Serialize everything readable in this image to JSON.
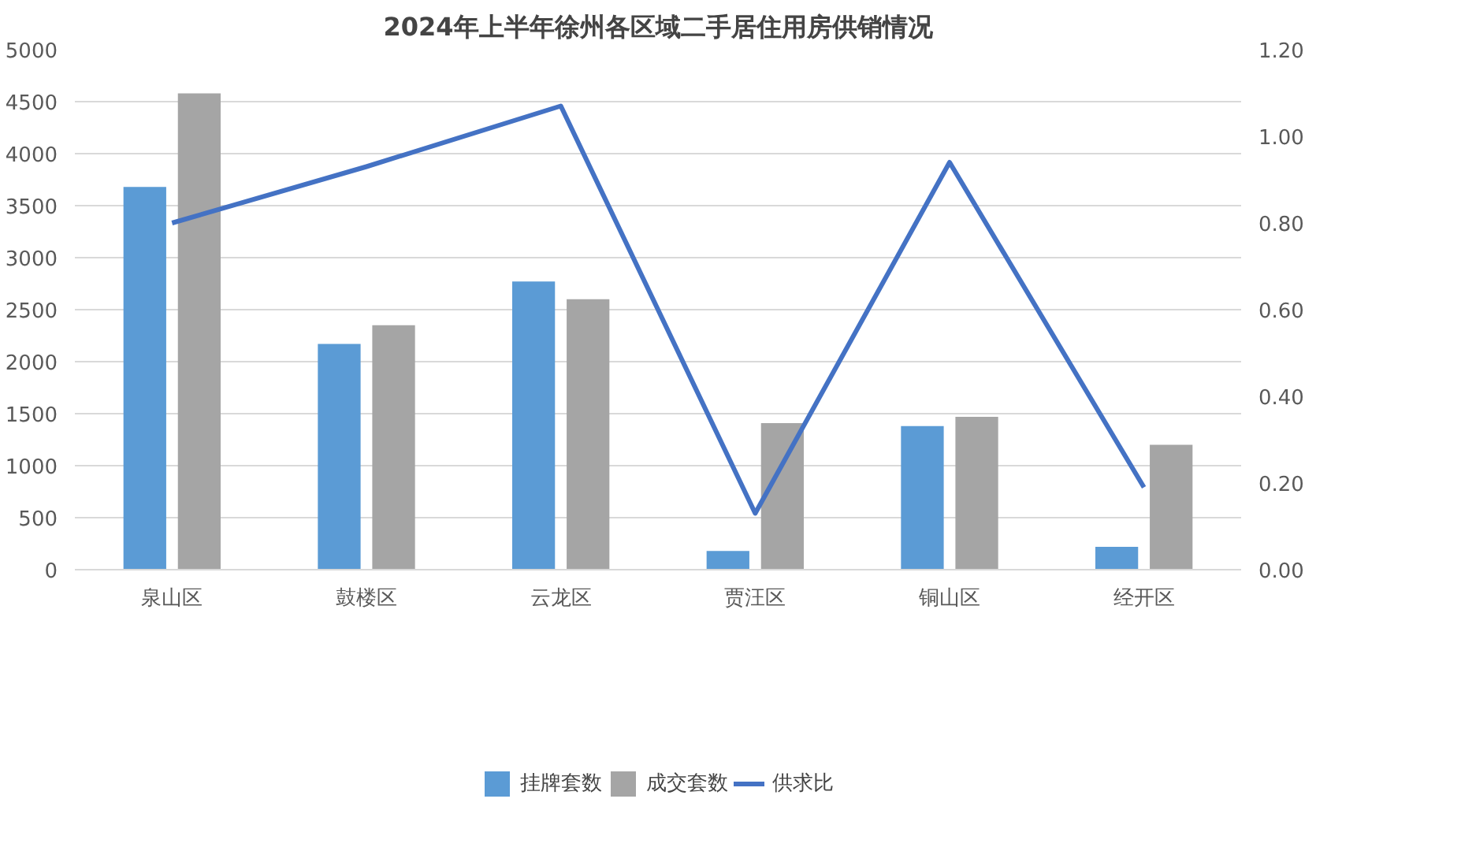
{
  "chart_data": {
    "type": "bar",
    "title": "2024年上半年徐州各区域二手居住用房供销情况",
    "categories": [
      "泉山区",
      "鼓楼区",
      "云龙区",
      "贾汪区",
      "铜山区",
      "经开区"
    ],
    "series": [
      {
        "name": "挂牌套数",
        "color": "#5b9bd5",
        "values": [
          3680,
          2170,
          2770,
          180,
          1380,
          220
        ]
      },
      {
        "name": "成交套数",
        "color": "#a5a5a5",
        "values": [
          4580,
          2350,
          2600,
          1410,
          1470,
          1200
        ]
      },
      {
        "name": "供求比",
        "type": "line",
        "axis": "y2",
        "color": "#4472c4",
        "values": [
          0.8,
          0.93,
          1.07,
          0.13,
          0.94,
          0.19
        ]
      }
    ],
    "ylim": [
      0,
      5000
    ],
    "yticks": [
      0,
      500,
      1000,
      1500,
      2000,
      2500,
      3000,
      3500,
      4000,
      4500,
      5000
    ],
    "y2lim": [
      0,
      1.2
    ],
    "y2ticks": [
      {
        "value": 0,
        "label": "0.00"
      },
      {
        "value": 0.2,
        "label": "0.20"
      },
      {
        "value": 0.4,
        "label": "0.40"
      },
      {
        "value": 0.6,
        "label": "0.60"
      },
      {
        "value": 0.8,
        "label": "0.80"
      },
      {
        "value": 1.0,
        "label": "1.00"
      },
      {
        "value": 1.2,
        "label": "1.20"
      }
    ],
    "grid": "y",
    "legend": "bottom"
  }
}
